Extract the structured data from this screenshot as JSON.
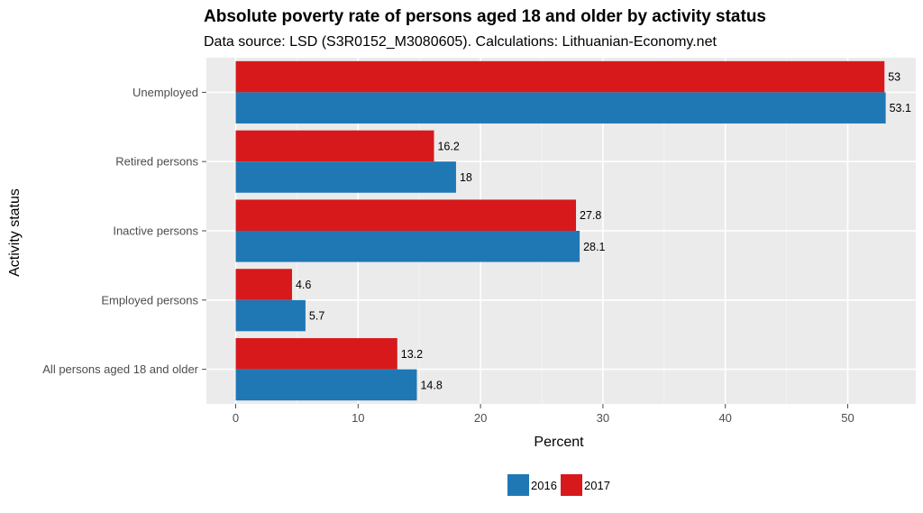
{
  "chart_data": {
    "type": "bar",
    "orientation": "horizontal",
    "title": "Absolute poverty rate of persons aged 18 and older by activity status",
    "subtitle": "Data source: LSD (S3R0152_M3080605). Calculations: Lithuanian-Economy.net",
    "xlabel": "Percent",
    "ylabel": "Activity status",
    "xlim": [
      0,
      55
    ],
    "xticks": [
      0,
      10,
      20,
      30,
      40,
      50
    ],
    "grid": true,
    "legend_position": "bottom",
    "categories": [
      "Unemployed",
      "Retired persons",
      "Inactive persons",
      "Employed persons",
      "All persons aged 18 and older"
    ],
    "series": [
      {
        "name": "2016",
        "color": "#1f78b4",
        "values": [
          53.1,
          18,
          28.1,
          5.7,
          14.8
        ],
        "labels": [
          "53.1",
          "18",
          "28.1",
          "5.7",
          "14.8"
        ]
      },
      {
        "name": "2017",
        "color": "#d7191c",
        "values": [
          53,
          16.2,
          27.8,
          4.6,
          13.2
        ],
        "labels": [
          "53",
          "16.2",
          "27.8",
          "4.6",
          "13.2"
        ]
      }
    ],
    "panel_background": "#ebebeb"
  }
}
